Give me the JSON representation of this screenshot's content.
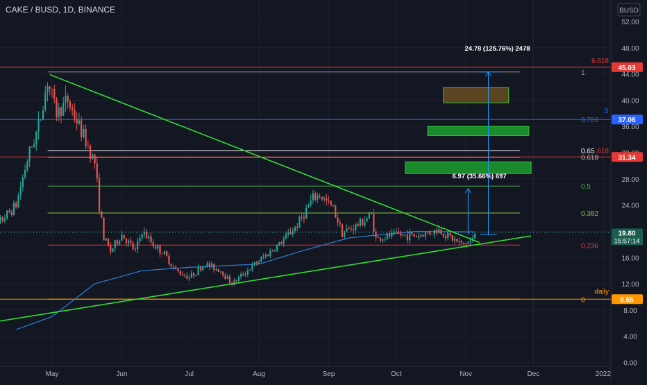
{
  "header": {
    "symbol": "CAKE / BUSD, 1D, BINANCE",
    "currency_button": "BUSD"
  },
  "colors": {
    "background": "#131722",
    "grid": "#1e2230",
    "axis_text": "#b2b5be",
    "up": "#26a69a",
    "down": "#ef5350",
    "trendline": "#33dd33",
    "ma": "#2d7fd6",
    "fib_1": "#9598a1",
    "fib_0786": "#2962ff",
    "fib_0618": "#b0b0b0",
    "fib_05": "#4caf50",
    "fib_0382": "#8bc34a",
    "fib_0236": "#e53935",
    "fib_0": "#ff9800",
    "price_now": "#1b5e4f",
    "box_orange": "#5a4520",
    "box_green": "#1b8a2a"
  },
  "chart_data": {
    "type": "candlestick",
    "title": "CAKE / BUSD, 1D, BINANCE",
    "x_ticks": [
      "May",
      "Jun",
      "Jul",
      "Aug",
      "Sep",
      "Oct",
      "Nov",
      "Dec",
      "2022"
    ],
    "y_ticks": [
      "0.00",
      "4.00",
      "8.00",
      "12.00",
      "16.00",
      "20.00",
      "24.00",
      "28.00",
      "32.00",
      "36.00",
      "40.00",
      "44.00",
      "48.00",
      "52.00"
    ],
    "y_range": [
      0,
      54
    ],
    "grid": true,
    "price_path": [
      [
        "2021-04-01",
        18.5
      ],
      [
        "2021-04-08",
        21.5
      ],
      [
        "2021-04-15",
        24.0
      ],
      [
        "2021-04-20",
        31.0
      ],
      [
        "2021-04-25",
        36.0
      ],
      [
        "2021-04-29",
        43.0
      ],
      [
        "2021-05-03",
        38.0
      ],
      [
        "2021-05-08",
        40.0
      ],
      [
        "2021-05-13",
        36.0
      ],
      [
        "2021-05-17",
        33.0
      ],
      [
        "2021-05-20",
        30.5
      ],
      [
        "2021-05-22",
        24.0
      ],
      [
        "2021-05-24",
        19.0
      ],
      [
        "2021-05-27",
        17.0
      ],
      [
        "2021-06-01",
        19.5
      ],
      [
        "2021-06-07",
        17.0
      ],
      [
        "2021-06-10",
        20.0
      ],
      [
        "2021-06-15",
        18.0
      ],
      [
        "2021-06-20",
        16.5
      ],
      [
        "2021-06-25",
        14.0
      ],
      [
        "2021-07-01",
        13.0
      ],
      [
        "2021-07-08",
        15.0
      ],
      [
        "2021-07-15",
        14.0
      ],
      [
        "2021-07-20",
        12.0
      ],
      [
        "2021-07-25",
        13.5
      ],
      [
        "2021-08-01",
        15.5
      ],
      [
        "2021-08-10",
        18.0
      ],
      [
        "2021-08-18",
        21.0
      ],
      [
        "2021-08-25",
        25.0
      ],
      [
        "2021-08-28",
        25.5
      ],
      [
        "2021-09-03",
        23.5
      ],
      [
        "2021-09-07",
        19.8
      ],
      [
        "2021-09-14",
        21.0
      ],
      [
        "2021-09-20",
        22.5
      ],
      [
        "2021-09-22",
        18.8
      ],
      [
        "2021-10-01",
        19.5
      ],
      [
        "2021-10-10",
        19.3
      ],
      [
        "2021-10-20",
        20.2
      ],
      [
        "2021-10-30",
        18.0
      ],
      [
        "2021-11-04",
        18.6
      ],
      [
        "2021-11-05",
        19.8
      ]
    ],
    "moving_average": [
      [
        "2021-04-15",
        5.0
      ],
      [
        "2021-05-01",
        7.0
      ],
      [
        "2021-05-20",
        12.0
      ],
      [
        "2021-06-10",
        14.0
      ],
      [
        "2021-07-01",
        14.5
      ],
      [
        "2021-08-01",
        15.0
      ],
      [
        "2021-08-20",
        17.0
      ],
      [
        "2021-09-10",
        19.0
      ],
      [
        "2021-10-10",
        20.0
      ],
      [
        "2021-11-05",
        19.9
      ]
    ],
    "trendlines": [
      {
        "from": [
          "2021-04-30",
          43.9
        ],
        "to": [
          "2021-11-07",
          18.3
        ]
      },
      {
        "from": [
          "2021-03-15",
          5.0
        ],
        "to": [
          "2021-11-30",
          19.3
        ]
      }
    ],
    "horizontal_levels": [
      {
        "price": 45.03,
        "tag": "45.03",
        "label": "6.618",
        "color": "#e53935"
      },
      {
        "price": 37.06,
        "tag": "37.06",
        "label": "3",
        "color": "#2962ff"
      },
      {
        "price": 31.34,
        "tag": "31.34",
        "label": ".618",
        "color": "#e53935"
      },
      {
        "price": 9.65,
        "tag": "9.65",
        "label": "daily",
        "color": "#ff9800"
      }
    ],
    "fibonacci": [
      {
        "ratio": "1",
        "price": 44.3
      },
      {
        "ratio": "0.786",
        "price": 37.06
      },
      {
        "ratio": "0.65",
        "price": 32.3
      },
      {
        "ratio": "0.618",
        "price": 31.3
      },
      {
        "ratio": "0.5",
        "price": 26.9
      },
      {
        "ratio": "0.382",
        "price": 22.8
      },
      {
        "ratio": "0.236",
        "price": 17.9
      },
      {
        "ratio": "0",
        "price": 9.65
      }
    ],
    "target_boxes": [
      {
        "from": "2021-10-22",
        "to": "2021-11-20",
        "top": 41.9,
        "bottom": 39.6,
        "style": "orange"
      },
      {
        "from": "2021-10-15",
        "to": "2021-11-29",
        "top": 36.0,
        "bottom": 34.6,
        "style": "green"
      },
      {
        "from": "2021-10-05",
        "to": "2021-11-30",
        "top": 30.6,
        "bottom": 28.8,
        "style": "green"
      }
    ],
    "measure_labels": [
      {
        "text": "24.78 (125.76%) 2478",
        "price": 48.0,
        "date": "2021-11-15"
      },
      {
        "text": "6.97 (35.66%) 697",
        "price": 28.5,
        "date": "2021-11-07"
      }
    ],
    "current_price": {
      "price": 19.8,
      "tag": "19.80",
      "countdown": "15:57:14"
    }
  }
}
